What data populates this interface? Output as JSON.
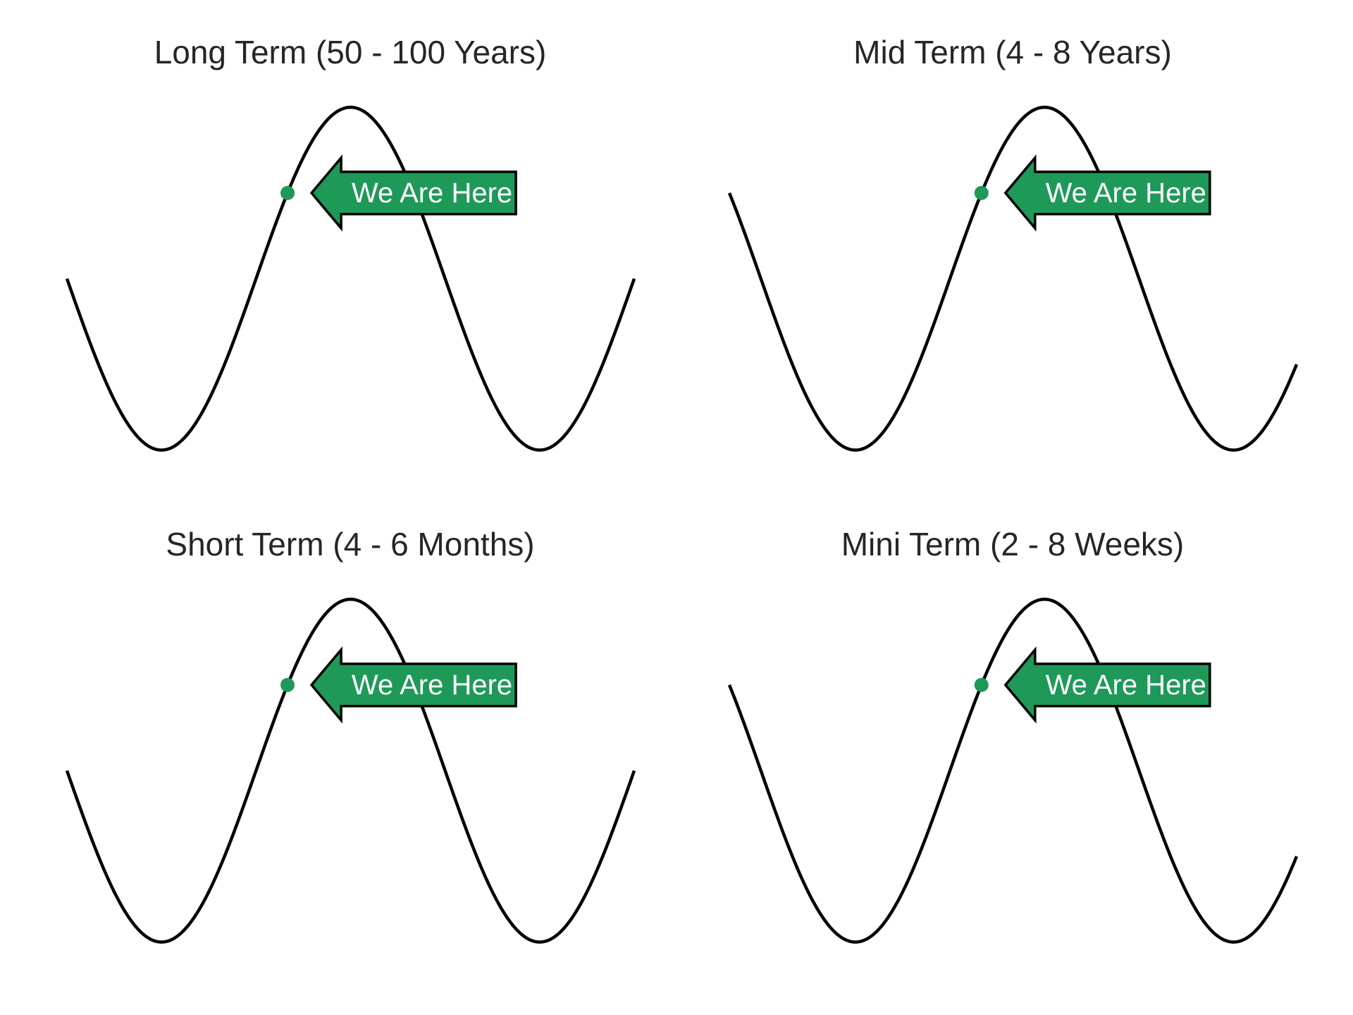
{
  "colors": {
    "curve": "#000000",
    "marker": "#1e9958",
    "arrow_fill": "#1e9958",
    "arrow_stroke": "#000000",
    "label_text": "#ffffff",
    "title_text": "#262626"
  },
  "chart_data": [
    {
      "type": "line",
      "title": "Long Term (50 - 100 Years)",
      "xlabel": "",
      "ylabel": "",
      "grid": false,
      "axes_visible": false,
      "phase_range_deg": [
        -180,
        360
      ],
      "ylim": [
        -1.15,
        1.05
      ],
      "series": [
        {
          "curve": "sine",
          "x_deg": [
            -180,
            360
          ]
        }
      ],
      "marker": {
        "phase_deg": 30,
        "value": 0.5
      },
      "annotation": "We Are Here"
    },
    {
      "type": "line",
      "title": "Mid Term (4 - 8 Years)",
      "xlabel": "",
      "ylabel": "",
      "grid": false,
      "axes_visible": false,
      "phase_range_deg": [
        -210,
        330
      ],
      "ylim": [
        -1.15,
        1.05
      ],
      "series": [
        {
          "curve": "sine",
          "x_deg": [
            -210,
            330
          ]
        }
      ],
      "marker": {
        "phase_deg": 30,
        "value": 0.5
      },
      "annotation": "We Are Here"
    },
    {
      "type": "line",
      "title": "Short Term (4 - 6 Months)",
      "xlabel": "",
      "ylabel": "",
      "grid": false,
      "axes_visible": false,
      "phase_range_deg": [
        -180,
        360
      ],
      "ylim": [
        -1.15,
        1.05
      ],
      "series": [
        {
          "curve": "sine",
          "x_deg": [
            -180,
            360
          ]
        }
      ],
      "marker": {
        "phase_deg": 30,
        "value": 0.5
      },
      "annotation": "We Are Here"
    },
    {
      "type": "line",
      "title": "Mini Term (2 - 8 Weeks)",
      "xlabel": "",
      "ylabel": "",
      "grid": false,
      "axes_visible": false,
      "phase_range_deg": [
        -210,
        330
      ],
      "ylim": [
        -1.15,
        1.05
      ],
      "series": [
        {
          "curve": "sine",
          "x_deg": [
            -210,
            330
          ]
        }
      ],
      "marker": {
        "phase_deg": 30,
        "value": 0.5
      },
      "annotation": "We Are Here"
    }
  ]
}
